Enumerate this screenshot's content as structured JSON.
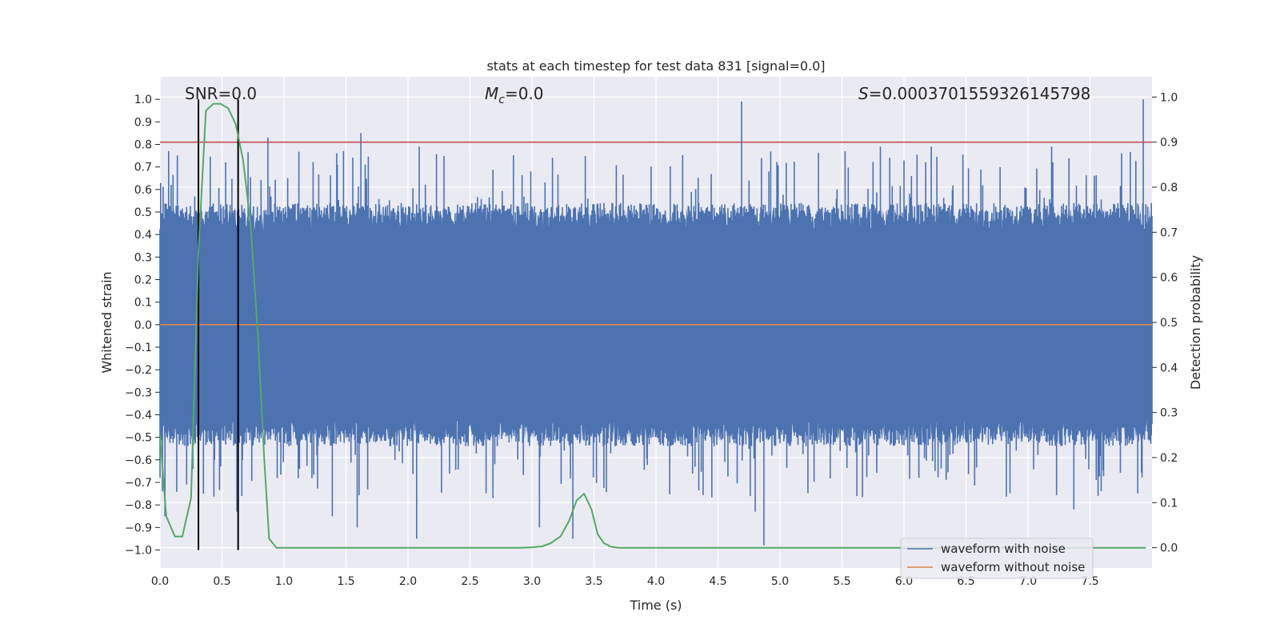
{
  "chart_data": {
    "type": "line",
    "title": "stats at each timestep for test data 831 [signal=0.0]",
    "xlabel": "Time (s)",
    "ylabel": "Whitened strain",
    "ylabel_right": "Detection probability",
    "xlim": [
      0.0,
      8.0
    ],
    "ylim": [
      -1.08,
      1.1
    ],
    "ylim_right": [
      -0.045,
      1.045
    ],
    "grid": true,
    "x_ticks": [
      0.0,
      0.5,
      1.0,
      1.5,
      2.0,
      2.5,
      3.0,
      3.5,
      4.0,
      4.5,
      5.0,
      5.5,
      6.0,
      6.5,
      7.0,
      7.5
    ],
    "x_tick_labels": [
      "0.0",
      "0.5",
      "1.0",
      "1.5",
      "2.0",
      "2.5",
      "3.0",
      "3.5",
      "4.0",
      "4.5",
      "5.0",
      "5.5",
      "6.0",
      "6.5",
      "7.0",
      "7.5"
    ],
    "y_ticks": [
      1.0,
      0.9,
      0.8,
      0.7,
      0.6,
      0.5,
      0.4,
      0.3,
      0.2,
      0.1,
      0.0,
      -0.1,
      -0.2,
      -0.3,
      -0.4,
      -0.5,
      -0.6,
      -0.7,
      -0.8,
      -0.9,
      -1.0
    ],
    "y_tick_labels": [
      "1.0",
      "0.9",
      "0.8",
      "0.7",
      "0.6",
      "0.5",
      "0.4",
      "0.3",
      "0.2",
      "0.1",
      "0.0",
      "−0.1",
      "−0.2",
      "−0.3",
      "−0.4",
      "−0.5",
      "−0.6",
      "−0.7",
      "−0.8",
      "−0.9",
      "−1.0"
    ],
    "y_right_ticks": [
      1.0,
      0.9,
      0.8,
      0.7,
      0.6,
      0.5,
      0.4,
      0.3,
      0.2,
      0.1,
      0.0
    ],
    "y_right_tick_labels": [
      "1.0",
      "0.9",
      "0.8",
      "0.7",
      "0.6",
      "0.5",
      "0.4",
      "0.3",
      "0.2",
      "0.1",
      "0.0"
    ],
    "annotations": {
      "snr": "SNR=0.0",
      "mc_symbol": "M",
      "mc_subscript": "c",
      "mc_value": "=0.0",
      "s_symbol": "S",
      "s_value": "=0.0003701559326145798"
    },
    "threshold": {
      "value": 0.9,
      "axis": "right",
      "color": "#c44e52"
    },
    "vertical_markers": {
      "x": [
        0.31,
        0.63
      ],
      "y_range": [
        -1.0,
        1.0
      ],
      "color": "#000000"
    },
    "series": [
      {
        "name": "waveform with noise",
        "axis": "left",
        "color": "#4c72b0",
        "description": "dense noise trace, roughly uniform band between -0.45 and 0.45 with spikes up to about ±0.99",
        "peaks": [
          {
            "x": 0.07,
            "y": 0.77
          },
          {
            "x": 0.53,
            "y": 0.72
          },
          {
            "x": 0.87,
            "y": 0.83
          },
          {
            "x": 1.48,
            "y": 0.77
          },
          {
            "x": 1.62,
            "y": 0.85
          },
          {
            "x": 2.09,
            "y": 0.79
          },
          {
            "x": 4.69,
            "y": 0.99
          },
          {
            "x": 5.81,
            "y": 0.79
          },
          {
            "x": 6.22,
            "y": 0.79
          },
          {
            "x": 7.19,
            "y": 0.79
          },
          {
            "x": 7.93,
            "y": 1.0
          }
        ],
        "troughs": [
          {
            "x": 0.04,
            "y": -0.85
          },
          {
            "x": 0.35,
            "y": -0.75
          },
          {
            "x": 0.62,
            "y": -0.83
          },
          {
            "x": 1.39,
            "y": -0.85
          },
          {
            "x": 1.59,
            "y": -0.9
          },
          {
            "x": 2.07,
            "y": -0.95
          },
          {
            "x": 3.06,
            "y": -0.9
          },
          {
            "x": 3.33,
            "y": -0.95
          },
          {
            "x": 4.8,
            "y": -0.83
          },
          {
            "x": 4.87,
            "y": -0.98
          },
          {
            "x": 7.37,
            "y": -0.82
          }
        ]
      },
      {
        "name": "waveform without noise",
        "axis": "left",
        "color": "#dd8452",
        "x": [
          0.0,
          8.0
        ],
        "values": [
          0.0,
          0.0
        ]
      },
      {
        "name": "detection probability",
        "axis": "right",
        "color": "#55a868",
        "x": [
          0.0,
          0.05,
          0.12,
          0.18,
          0.25,
          0.31,
          0.37,
          0.43,
          0.49,
          0.55,
          0.61,
          0.67,
          0.73,
          0.79,
          0.84,
          0.88,
          0.94,
          1.0,
          1.5,
          2.0,
          2.5,
          2.9,
          3.0,
          3.08,
          3.15,
          3.23,
          3.3,
          3.36,
          3.42,
          3.48,
          3.53,
          3.58,
          3.64,
          3.7,
          4.0,
          5.0,
          6.0,
          7.0,
          7.95
        ],
        "values": [
          0.25,
          0.07,
          0.025,
          0.025,
          0.11,
          0.66,
          0.97,
          0.985,
          0.985,
          0.975,
          0.94,
          0.86,
          0.72,
          0.47,
          0.2,
          0.02,
          0.0,
          0.0,
          0.0,
          0.0,
          0.0,
          0.0,
          0.001,
          0.003,
          0.01,
          0.025,
          0.06,
          0.105,
          0.12,
          0.085,
          0.03,
          0.01,
          0.002,
          0.0,
          0.0,
          0.0,
          0.0,
          0.0,
          0.0
        ]
      }
    ],
    "legend": {
      "location": "lower-right",
      "entries": [
        {
          "label": "waveform with noise",
          "color": "#4c72b0"
        },
        {
          "label": "waveform without noise",
          "color": "#dd8452"
        }
      ]
    }
  }
}
